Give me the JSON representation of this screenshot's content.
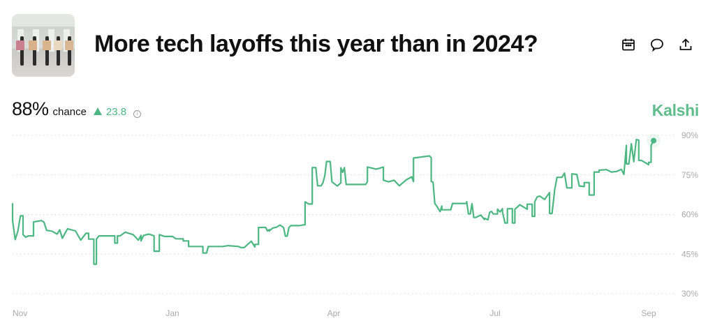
{
  "header": {
    "title": "More tech layoffs this year than in 2024?",
    "thumbnail": "people-holding-signs-image",
    "actions": [
      {
        "name": "calendar-icon"
      },
      {
        "name": "comment-icon"
      },
      {
        "name": "share-icon"
      }
    ]
  },
  "summary": {
    "probability": "88%",
    "chance_label": "chance",
    "change": "23.8",
    "change_direction": "up",
    "source": "Kalshi"
  },
  "colors": {
    "line": "#4cb782",
    "brand": "#5fbd8c",
    "positive": "#4cb782",
    "grid": "#d9d9d9",
    "tick": "#aaaaaa"
  },
  "chart_data": {
    "type": "line",
    "title": "",
    "xlabel": "",
    "ylabel": "",
    "ylim": [
      30,
      90
    ],
    "y_ticks": [
      {
        "value": 90,
        "label": "90%"
      },
      {
        "value": 75,
        "label": "75%"
      },
      {
        "value": 60,
        "label": "60%"
      },
      {
        "value": 45,
        "label": "45%"
      },
      {
        "value": 30,
        "label": "30%"
      }
    ],
    "x_ticks": [
      {
        "date": "2024-11-01",
        "label": "Nov"
      },
      {
        "date": "2025-01-01",
        "label": "Jan"
      },
      {
        "date": "2025-04-01",
        "label": "Apr"
      },
      {
        "date": "2025-07-01",
        "label": "Jul"
      },
      {
        "date": "2025-09-01",
        "label": "Sep"
      }
    ],
    "grid": "horizontal dotted",
    "y_axis_side": "right",
    "last_point_marker": true,
    "series": [
      {
        "points": [
          [
            "2024-11-01",
            64.3
          ],
          [
            "2024-11-01",
            57.7
          ],
          [
            "2024-11-02",
            50.5
          ],
          [
            "2024-11-03",
            53.6
          ],
          [
            "2024-11-04",
            59.5
          ],
          [
            "2024-11-05",
            59.5
          ],
          [
            "2024-11-05",
            52.4
          ],
          [
            "2024-11-06",
            51.4
          ],
          [
            "2024-11-07",
            51.9
          ],
          [
            "2024-11-09",
            51.9
          ],
          [
            "2024-11-09",
            57.2
          ],
          [
            "2024-11-12",
            57.7
          ],
          [
            "2024-11-13",
            57.1
          ],
          [
            "2024-11-14",
            54.0
          ],
          [
            "2024-11-16",
            53.7
          ],
          [
            "2024-11-18",
            52.6
          ],
          [
            "2024-11-19",
            54.2
          ],
          [
            "2024-11-20",
            51.0
          ],
          [
            "2024-11-21",
            52.9
          ],
          [
            "2024-11-22",
            54.6
          ],
          [
            "2024-11-25",
            53.8
          ],
          [
            "2024-11-27",
            50.3
          ],
          [
            "2024-11-29",
            52.9
          ],
          [
            "2024-11-30",
            52.9
          ],
          [
            "2024-11-30",
            50.7
          ],
          [
            "2024-12-02",
            50.7
          ],
          [
            "2024-12-02",
            41.2
          ],
          [
            "2024-12-03",
            41.2
          ],
          [
            "2024-12-03",
            50.7
          ],
          [
            "2024-12-04",
            51.9
          ],
          [
            "2024-12-10",
            51.9
          ],
          [
            "2024-12-10",
            49.2
          ],
          [
            "2024-12-11",
            49.2
          ],
          [
            "2024-12-11",
            51.9
          ],
          [
            "2024-12-12",
            51.9
          ],
          [
            "2024-12-14",
            53.3
          ],
          [
            "2024-12-17",
            52.4
          ],
          [
            "2024-12-19",
            50.3
          ],
          [
            "2024-12-20",
            52.1
          ],
          [
            "2024-12-20",
            50.0
          ],
          [
            "2024-12-21",
            52.1
          ],
          [
            "2024-12-23",
            52.6
          ],
          [
            "2024-12-25",
            51.9
          ],
          [
            "2024-12-25",
            46.1
          ],
          [
            "2024-12-27",
            46.1
          ],
          [
            "2024-12-27",
            52.4
          ],
          [
            "2024-12-29",
            51.7
          ],
          [
            "2025-01-01",
            51.7
          ],
          [
            "2025-01-03",
            50.8
          ],
          [
            "2025-01-07",
            50.8
          ],
          [
            "2025-01-07",
            50.0
          ],
          [
            "2025-01-10",
            50.0
          ],
          [
            "2025-01-10",
            47.9
          ],
          [
            "2025-01-18",
            47.9
          ],
          [
            "2025-01-18",
            45.4
          ],
          [
            "2025-01-20",
            45.4
          ],
          [
            "2025-01-21",
            47.9
          ],
          [
            "2025-01-29",
            47.9
          ],
          [
            "2025-02-01",
            48.2
          ],
          [
            "2025-02-07",
            47.9
          ],
          [
            "2025-02-08",
            47.5
          ],
          [
            "2025-02-10",
            47.5
          ],
          [
            "2025-02-14",
            49.9
          ],
          [
            "2025-02-16",
            47.7
          ],
          [
            "2025-02-16",
            48.7
          ],
          [
            "2025-02-18",
            48.7
          ],
          [
            "2025-02-18",
            55.1
          ],
          [
            "2025-02-22",
            55.1
          ],
          [
            "2025-02-23",
            53.8
          ],
          [
            "2025-02-24",
            54.3
          ],
          [
            "2025-02-24",
            53.8
          ],
          [
            "2025-02-26",
            54.9
          ],
          [
            "2025-02-28",
            55.2
          ],
          [
            "2025-03-02",
            56.0
          ],
          [
            "2025-03-04",
            55.1
          ],
          [
            "2025-03-05",
            51.8
          ],
          [
            "2025-03-06",
            51.8
          ],
          [
            "2025-03-07",
            55.1
          ],
          [
            "2025-03-08",
            55.8
          ],
          [
            "2025-03-13",
            55.8
          ],
          [
            "2025-03-15",
            56.1
          ],
          [
            "2025-03-16",
            56.1
          ],
          [
            "2025-03-16",
            64.8
          ],
          [
            "2025-03-18",
            64.0
          ],
          [
            "2025-03-20",
            64.0
          ],
          [
            "2025-03-20",
            77.8
          ],
          [
            "2025-03-22",
            77.8
          ],
          [
            "2025-03-23",
            70.9
          ],
          [
            "2025-03-25",
            70.9
          ],
          [
            "2025-03-26",
            72.1
          ],
          [
            "2025-03-27",
            74.7
          ],
          [
            "2025-03-28",
            80.1
          ],
          [
            "2025-03-30",
            80.1
          ],
          [
            "2025-03-31",
            72.4
          ],
          [
            "2025-04-03",
            70.8
          ],
          [
            "2025-04-05",
            72.0
          ],
          [
            "2025-04-05",
            77.7
          ],
          [
            "2025-04-06",
            76.0
          ],
          [
            "2025-04-07",
            77.8
          ],
          [
            "2025-04-08",
            71.4
          ],
          [
            "2025-04-19",
            71.4
          ],
          [
            "2025-04-20",
            72.5
          ],
          [
            "2025-04-20",
            78.0
          ],
          [
            "2025-04-25",
            77.2
          ],
          [
            "2025-04-29",
            78.0
          ],
          [
            "2025-04-29",
            73.0
          ],
          [
            "2025-05-02",
            72.4
          ],
          [
            "2025-05-05",
            73.0
          ],
          [
            "2025-05-08",
            70.9
          ],
          [
            "2025-05-12",
            73.2
          ],
          [
            "2025-05-15",
            74.3
          ],
          [
            "2025-05-16",
            72.5
          ],
          [
            "2025-05-16",
            81.4
          ],
          [
            "2025-05-25",
            82.2
          ],
          [
            "2025-05-26",
            81.5
          ],
          [
            "2025-05-26",
            72.5
          ],
          [
            "2025-05-27",
            72.3
          ],
          [
            "2025-05-28",
            64.2
          ],
          [
            "2025-05-29",
            63.3
          ],
          [
            "2025-05-31",
            61.1
          ],
          [
            "2025-06-01",
            63.2
          ],
          [
            "2025-06-01",
            61.8
          ],
          [
            "2025-06-06",
            61.8
          ],
          [
            "2025-06-07",
            64.2
          ],
          [
            "2025-06-15",
            64.2
          ],
          [
            "2025-06-15",
            64.9
          ],
          [
            "2025-06-16",
            60.2
          ],
          [
            "2025-06-17",
            60.2
          ],
          [
            "2025-06-18",
            64.1
          ],
          [
            "2025-06-18",
            64.1
          ],
          [
            "2025-06-19",
            58.9
          ],
          [
            "2025-06-20",
            58.9
          ],
          [
            "2025-06-23",
            59.8
          ],
          [
            "2025-06-25",
            58.1
          ],
          [
            "2025-06-25",
            58.6
          ],
          [
            "2025-06-27",
            58.0
          ],
          [
            "2025-06-28",
            60.9
          ],
          [
            "2025-06-29",
            61.2
          ],
          [
            "2025-06-30",
            60.2
          ],
          [
            "2025-07-02",
            60.2
          ],
          [
            "2025-07-02",
            62.0
          ],
          [
            "2025-07-03",
            61.0
          ],
          [
            "2025-07-04",
            62.2
          ],
          [
            "2025-07-04",
            61.0
          ],
          [
            "2025-07-05",
            56.8
          ],
          [
            "2025-07-06",
            56.8
          ],
          [
            "2025-07-06",
            62.2
          ],
          [
            "2025-07-08",
            62.2
          ],
          [
            "2025-07-08",
            56.8
          ],
          [
            "2025-07-09",
            56.8
          ],
          [
            "2025-07-09",
            62.0
          ],
          [
            "2025-07-11",
            63.7
          ],
          [
            "2025-07-14",
            62.0
          ],
          [
            "2025-07-14",
            63.9
          ],
          [
            "2025-07-16",
            63.9
          ],
          [
            "2025-07-16",
            59.3
          ],
          [
            "2025-07-17",
            59.3
          ],
          [
            "2025-07-17",
            64.8
          ],
          [
            "2025-07-18",
            66.7
          ],
          [
            "2025-07-19",
            67.0
          ],
          [
            "2025-07-21",
            65.7
          ],
          [
            "2025-07-23",
            68.3
          ],
          [
            "2025-07-23",
            60.4
          ],
          [
            "2025-07-24",
            60.4
          ],
          [
            "2025-07-25",
            68.8
          ],
          [
            "2025-07-25",
            69.1
          ],
          [
            "2025-07-26",
            74.1
          ],
          [
            "2025-07-28",
            74.1
          ],
          [
            "2025-07-29",
            75.7
          ],
          [
            "2025-07-29",
            75.7
          ],
          [
            "2025-07-30",
            70.1
          ],
          [
            "2025-08-01",
            70.1
          ],
          [
            "2025-08-01",
            75.4
          ],
          [
            "2025-08-03",
            75.2
          ],
          [
            "2025-08-04",
            70.8
          ],
          [
            "2025-08-06",
            70.6
          ],
          [
            "2025-08-06",
            72.1
          ],
          [
            "2025-08-08",
            72.1
          ],
          [
            "2025-08-08",
            67.4
          ],
          [
            "2025-08-10",
            67.4
          ],
          [
            "2025-08-10",
            76.1
          ],
          [
            "2025-08-12",
            76.1
          ],
          [
            "2025-08-12",
            76.8
          ],
          [
            "2025-08-15",
            77.0
          ],
          [
            "2025-08-17",
            76.1
          ],
          [
            "2025-08-19",
            76.3
          ],
          [
            "2025-08-21",
            77.1
          ],
          [
            "2025-08-22",
            75.2
          ],
          [
            "2025-08-23",
            86.2
          ],
          [
            "2025-08-23",
            79.2
          ],
          [
            "2025-08-24",
            79.2
          ],
          [
            "2025-08-25",
            86.8
          ],
          [
            "2025-08-25",
            86.8
          ],
          [
            "2025-08-26",
            80.0
          ],
          [
            "2025-08-26",
            80.0
          ],
          [
            "2025-08-27",
            88.4
          ],
          [
            "2025-08-28",
            88.2
          ],
          [
            "2025-08-28",
            80.5
          ],
          [
            "2025-08-29",
            80.5
          ],
          [
            "2025-08-30",
            80.0
          ],
          [
            "2025-09-01",
            78.9
          ],
          [
            "2025-09-01",
            79.8
          ],
          [
            "2025-09-02",
            79.8
          ],
          [
            "2025-09-02",
            86.2
          ],
          [
            "2025-09-03",
            88.0
          ]
        ]
      }
    ]
  }
}
